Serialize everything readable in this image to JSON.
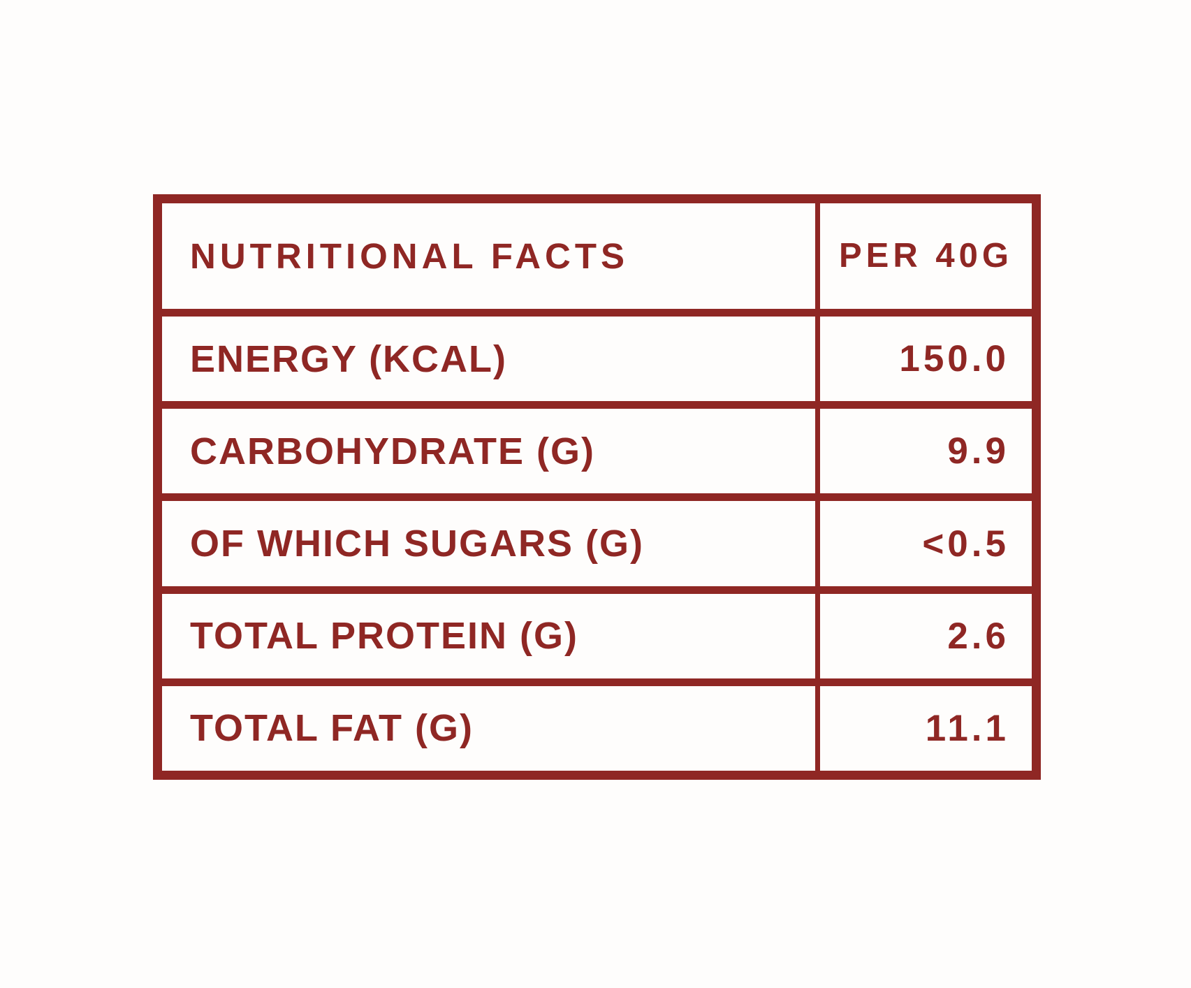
{
  "colors": {
    "accent": "#8f2724",
    "background": "#fefdfc"
  },
  "table": {
    "header": {
      "label": "NUTRITIONAL FACTS",
      "value": "PER 40G"
    },
    "rows": [
      {
        "label": "ENERGY (KCAL)",
        "value": "150.0"
      },
      {
        "label": "CARBOHYDRATE (G)",
        "value": "9.9"
      },
      {
        "label": "OF WHICH SUGARS (G)",
        "value": "<0.5"
      },
      {
        "label": "TOTAL PROTEIN (G)",
        "value": "2.6"
      },
      {
        "label": "TOTAL FAT (G)",
        "value": "11.1"
      }
    ]
  },
  "chart_data": {
    "type": "table",
    "title": "NUTRITIONAL FACTS",
    "columns": [
      "NUTRITIONAL FACTS",
      "PER 40G"
    ],
    "rows": [
      [
        "ENERGY (KCAL)",
        "150.0"
      ],
      [
        "CARBOHYDRATE (G)",
        "9.9"
      ],
      [
        "OF WHICH SUGARS (G)",
        "<0.5"
      ],
      [
        "TOTAL PROTEIN (G)",
        "2.6"
      ],
      [
        "TOTAL FAT (G)",
        "11.1"
      ]
    ],
    "layout_hints": {
      "label_align": "left",
      "value_align": "right",
      "header_value_align": "center",
      "border_color": "#8f2724",
      "text_color": "#8f2724"
    }
  }
}
